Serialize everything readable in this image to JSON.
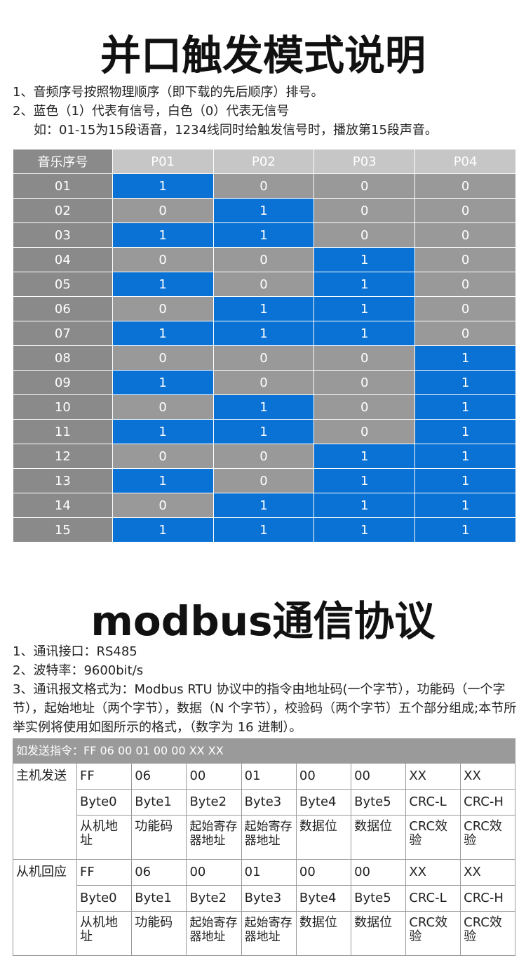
{
  "section1": {
    "title": "并口触发模式说明",
    "notes": [
      "1、音频序号按照物理顺序（即下载的先后顺序）排号。",
      "2、蓝色（1）代表有信号，白色（0）代表无信号",
      "如：01-15为15段语音，1234线同时给触发信号时，播放第15段声音。"
    ],
    "table": {
      "header": [
        "音乐序号",
        "P01",
        "P02",
        "P03",
        "P04"
      ],
      "rows": [
        [
          "01",
          1,
          0,
          0,
          0
        ],
        [
          "02",
          0,
          1,
          0,
          0
        ],
        [
          "03",
          1,
          1,
          0,
          0
        ],
        [
          "04",
          0,
          0,
          1,
          0
        ],
        [
          "05",
          1,
          0,
          1,
          0
        ],
        [
          "06",
          0,
          1,
          1,
          0
        ],
        [
          "07",
          1,
          1,
          1,
          0
        ],
        [
          "08",
          0,
          0,
          0,
          1
        ],
        [
          "09",
          1,
          0,
          0,
          1
        ],
        [
          "10",
          0,
          1,
          0,
          1
        ],
        [
          "11",
          1,
          1,
          0,
          1
        ],
        [
          "12",
          0,
          0,
          1,
          1
        ],
        [
          "13",
          1,
          0,
          1,
          1
        ],
        [
          "14",
          0,
          1,
          1,
          1
        ],
        [
          "15",
          1,
          1,
          1,
          1
        ]
      ]
    }
  },
  "section2": {
    "title": "modbus通信协议",
    "notes": [
      "1、通讯接口：RS485",
      "2、波特率：9600bit/s",
      "3、通讯报文格式为：Modbus RTU 协议中的指令由地址码(一个字节），功能码（一个字节），起始地址（两个字节），数据（N 个字节），校验码（两个字节）五个部分组成;本节所举实例将使用如图所示的格式，（数字为 16 进制）。"
    ],
    "table": {
      "caption": "如发送指令：FF 06 00 01 00 00 XX XX",
      "groups": [
        {
          "label": "主机发送",
          "rows": [
            [
              "FF",
              "06",
              "00",
              "01",
              "00",
              "00",
              "XX",
              "XX"
            ],
            [
              "Byte0",
              "Byte1",
              "Byte2",
              "Byte3",
              "Byte4",
              "Byte5",
              "CRC-L",
              "CRC-H"
            ],
            [
              "从机地址",
              "功能码",
              "起始寄存器地址",
              "起始寄存器地址",
              "数据位",
              "数据位",
              "CRC效验",
              "CRC效验"
            ]
          ]
        },
        {
          "label": "从机回应",
          "rows": [
            [
              "FF",
              "06",
              "00",
              "01",
              "00",
              "00",
              "XX",
              "XX"
            ],
            [
              "Byte0",
              "Byte1",
              "Byte2",
              "Byte3",
              "Byte4",
              "Byte5",
              "CRC-L",
              "CRC-H"
            ],
            [
              "从机地址",
              "功能码",
              "起始寄存器地址",
              "起始寄存器地址",
              "数据位",
              "数据位",
              "CRC效验",
              "CRC效验"
            ]
          ]
        }
      ]
    }
  }
}
